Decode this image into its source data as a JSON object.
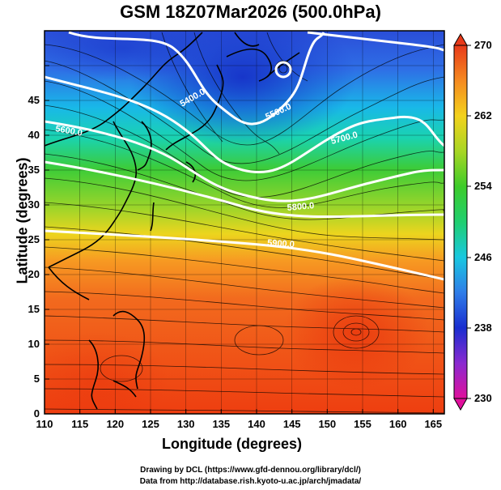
{
  "title": "GSM 18Z07Mar2026 (500.0hPa)",
  "x_axis": {
    "label": "Longitude (degrees)",
    "ticks": [
      "110",
      "115",
      "120",
      "125",
      "130",
      "135",
      "140",
      "145",
      "150",
      "155",
      "160",
      "165"
    ]
  },
  "y_axis": {
    "label": "Latitude  (degrees)",
    "ticks": [
      "0",
      "5",
      "10",
      "15",
      "20",
      "25",
      "30",
      "35",
      "40",
      "45"
    ]
  },
  "colorbar": {
    "ticks": [
      "230",
      "238",
      "246",
      "254",
      "262",
      "270"
    ],
    "min": 230,
    "max": 270
  },
  "contours": [
    {
      "label": "5400.0"
    },
    {
      "label": "5500.0"
    },
    {
      "label": "5600.0"
    },
    {
      "label": "5700.0"
    },
    {
      "label": "5800.0"
    },
    {
      "label": "5900.0"
    }
  ],
  "credit": {
    "line1": "Drawing by DCL (https://www.gfd-dennou.org/library/dcl/)",
    "line2": "Data from http://database.rish.kyoto-u.ac.jp/arch/jmadata/"
  },
  "colors": {
    "frame": "#000000",
    "contour": "#ffffff"
  }
}
